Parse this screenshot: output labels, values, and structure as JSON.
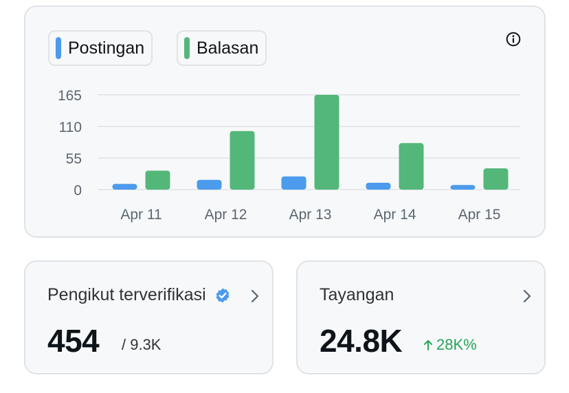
{
  "colors": {
    "posts": "#4c9bec",
    "replies": "#53b77a",
    "grid": "#e4e8eb",
    "axis_text": "#5b6670",
    "positive": "#27a35a",
    "verified": "#4c9bec"
  },
  "legend": {
    "posts_label": "Postingan",
    "replies_label": "Balasan"
  },
  "icons": {
    "info": "info-icon",
    "verified": "verified-badge-icon",
    "chevron": "chevron-right-icon",
    "trend_up": "arrow-up-icon"
  },
  "chart_data": {
    "type": "bar",
    "categories": [
      "Apr 11",
      "Apr 12",
      "Apr 13",
      "Apr 14",
      "Apr 15"
    ],
    "series": [
      {
        "name": "Postingan",
        "values": [
          10,
          17,
          23,
          12,
          8
        ]
      },
      {
        "name": "Balasan",
        "values": [
          33,
          102,
          165,
          81,
          37
        ]
      }
    ],
    "yticks": [
      "0",
      "55",
      "110",
      "165"
    ],
    "ylim": [
      0,
      165
    ],
    "grid": true,
    "legend": "top-left"
  },
  "stats": {
    "verified_followers": {
      "label": "Pengikut terverifikasi",
      "value": "454",
      "total": "/ 9.3K"
    },
    "impressions": {
      "label": "Tayangan",
      "value": "24.8K",
      "change": "28K%"
    }
  }
}
